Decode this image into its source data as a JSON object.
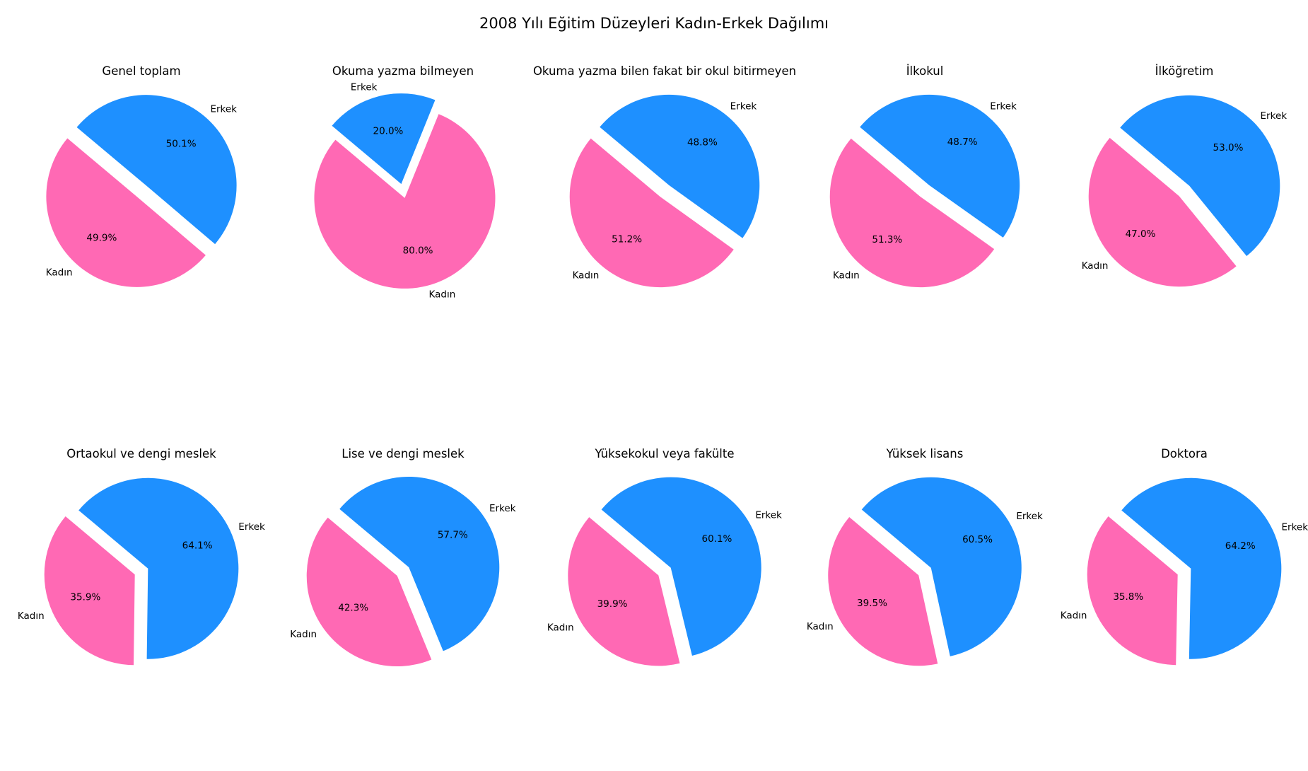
{
  "figure": {
    "title": "2008 Yılı Eğitim Düzeyleri Kadın-Erkek Dağılımı"
  },
  "colors": {
    "Kadın": "#ff69b4",
    "Erkek": "#1e90ff"
  },
  "chart_data": [
    {
      "type": "pie",
      "title": "Genel toplam",
      "labels": [
        "Kadın",
        "Erkek"
      ],
      "values": [
        49.9,
        50.1
      ],
      "display": [
        "49.9%",
        "50.1%"
      ]
    },
    {
      "type": "pie",
      "title": "Okuma yazma bilmeyen",
      "labels": [
        "Kadın",
        "Erkek"
      ],
      "values": [
        80.0,
        20.0
      ],
      "display": [
        "80.0%",
        "20.0%"
      ]
    },
    {
      "type": "pie",
      "title": "Okuma yazma bilen fakat bir okul bitirmeyen",
      "labels": [
        "Kadın",
        "Erkek"
      ],
      "values": [
        51.2,
        48.8
      ],
      "display": [
        "51.2%",
        "48.8%"
      ]
    },
    {
      "type": "pie",
      "title": "İlkokul",
      "labels": [
        "Kadın",
        "Erkek"
      ],
      "values": [
        51.3,
        48.7
      ],
      "display": [
        "51.3%",
        "48.7%"
      ]
    },
    {
      "type": "pie",
      "title": "İlköğretim",
      "labels": [
        "Kadın",
        "Erkek"
      ],
      "values": [
        47.0,
        53.0
      ],
      "display": [
        "47.0%",
        "53.0%"
      ]
    },
    {
      "type": "pie",
      "title": "Ortaokul ve dengi meslek",
      "labels": [
        "Kadın",
        "Erkek"
      ],
      "values": [
        35.9,
        64.1
      ],
      "display": [
        "35.9%",
        "64.1%"
      ]
    },
    {
      "type": "pie",
      "title": "Lise ve dengi meslek",
      "labels": [
        "Kadın",
        "Erkek"
      ],
      "values": [
        42.3,
        57.7
      ],
      "display": [
        "42.3%",
        "57.7%"
      ]
    },
    {
      "type": "pie",
      "title": "Yüksekokul veya fakülte",
      "labels": [
        "Kadın",
        "Erkek"
      ],
      "values": [
        39.9,
        60.1
      ],
      "display": [
        "39.9%",
        "60.1%"
      ]
    },
    {
      "type": "pie",
      "title": "Yüksek lisans",
      "labels": [
        "Kadın",
        "Erkek"
      ],
      "values": [
        39.5,
        60.5
      ],
      "display": [
        "39.5%",
        "60.5%"
      ]
    },
    {
      "type": "pie",
      "title": "Doktora",
      "labels": [
        "Kadın",
        "Erkek"
      ],
      "values": [
        35.8,
        64.2
      ],
      "display": [
        "35.8%",
        "64.2%"
      ]
    }
  ]
}
